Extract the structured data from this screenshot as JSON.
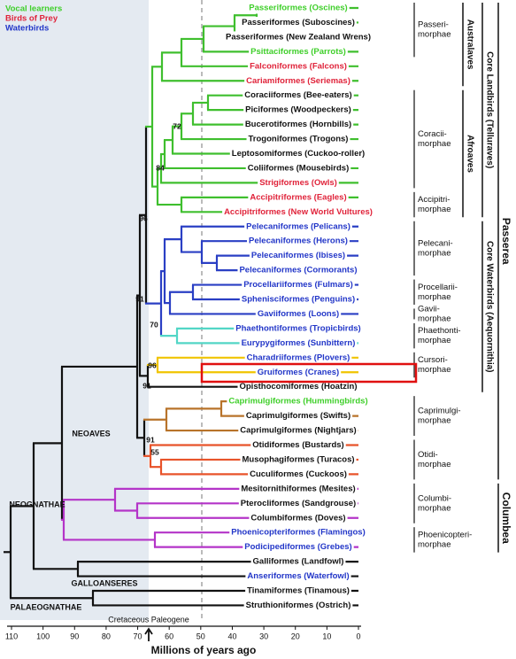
{
  "legend": [
    {
      "label": "Vocal learners",
      "color": "#3fcf2a"
    },
    {
      "label": "Birds of Prey",
      "color": "#e0233a"
    },
    {
      "label": "Waterbirds",
      "color": "#2236c8"
    }
  ],
  "taxa": [
    {
      "label": "Passeriformes (Oscines)",
      "color": "#3fcf2a"
    },
    {
      "label": "Passeriformes (Suboscines)",
      "color": "#111111"
    },
    {
      "label": "Passeriformes (New Zealand Wrens)",
      "color": "#111111"
    },
    {
      "label": "Psittaciformes (Parrots)",
      "color": "#3fcf2a"
    },
    {
      "label": "Falconiformes (Falcons)",
      "color": "#e0233a"
    },
    {
      "label": "Cariamiformes (Seriemas)",
      "color": "#e0233a"
    },
    {
      "label": "Coraciiformes (Bee-eaters)",
      "color": "#111111"
    },
    {
      "label": "Piciformes (Woodpeckers)",
      "color": "#111111"
    },
    {
      "label": "Bucerotiformes (Hornbills)",
      "color": "#111111"
    },
    {
      "label": "Trogoniformes (Trogons)",
      "color": "#111111"
    },
    {
      "label": "Leptosomiformes (Cuckoo-roller)",
      "color": "#111111"
    },
    {
      "label": "Coliiformes (Mousebirds)",
      "color": "#111111"
    },
    {
      "label": "Strigiformes (Owls)",
      "color": "#e0233a"
    },
    {
      "label": "Accipitriformes (Eagles)",
      "color": "#e0233a"
    },
    {
      "label": "Accipitriformes (New World Vultures)",
      "color": "#e0233a"
    },
    {
      "label": "Pelecaniformes (Pelicans)",
      "color": "#2236c8"
    },
    {
      "label": "Pelecaniformes (Herons)",
      "color": "#2236c8"
    },
    {
      "label": "Pelecaniformes (Ibises)",
      "color": "#2236c8"
    },
    {
      "label": "Pelecaniformes (Cormorants)",
      "color": "#2236c8"
    },
    {
      "label": "Procellariiformes (Fulmars)",
      "color": "#2236c8"
    },
    {
      "label": "Sphenisciformes (Penguins)",
      "color": "#2236c8"
    },
    {
      "label": "Gaviiformes (Loons)",
      "color": "#2236c8"
    },
    {
      "label": "Phaethontiformes (Tropicbirds)",
      "color": "#2236c8"
    },
    {
      "label": "Eurypygiformes (Sunbittern)",
      "color": "#2236c8"
    },
    {
      "label": "Charadriiformes (Plovers)",
      "color": "#2236c8"
    },
    {
      "label": "Gruiformes (Cranes)",
      "color": "#2236c8"
    },
    {
      "label": "Opisthocomiformes (Hoatzin)",
      "color": "#111111"
    },
    {
      "label": "Caprimulgiformes (Hummingbirds)",
      "color": "#3fcf2a"
    },
    {
      "label": "Caprimulgiformes (Swifts)",
      "color": "#111111"
    },
    {
      "label": "Caprimulgiformes (Nightjars)",
      "color": "#111111"
    },
    {
      "label": "Otidiformes (Bustards)",
      "color": "#111111"
    },
    {
      "label": "Musophagiformes (Turacos)",
      "color": "#111111"
    },
    {
      "label": "Cuculiformes (Cuckoos)",
      "color": "#111111"
    },
    {
      "label": "Mesitornithiformes (Mesites)",
      "color": "#111111"
    },
    {
      "label": "Pterocliformes (Sandgrouse)",
      "color": "#111111"
    },
    {
      "label": "Columbiformes (Doves)",
      "color": "#111111"
    },
    {
      "label": "Phoenicopteriformes (Flamingos)",
      "color": "#2236c8"
    },
    {
      "label": "Podicipediformes (Grebes)",
      "color": "#2236c8"
    },
    {
      "label": "Galliformes (Landfowl)",
      "color": "#111111"
    },
    {
      "label": "Anseriformes (Waterfowl)",
      "color": "#2236c8"
    },
    {
      "label": "Tinamiformes (Tinamous)",
      "color": "#111111"
    },
    {
      "label": "Struthioniformes (Ostrich)",
      "color": "#111111"
    }
  ],
  "clades": [
    [
      "Passeri-",
      "morphae"
    ],
    [
      "Coracii-",
      "morphae"
    ],
    [
      "Accipitri-",
      "morphae"
    ],
    [
      "Pelecani-",
      "morphae"
    ],
    [
      "Procellarii-",
      "morphae"
    ],
    [
      "Gavii-",
      "morphae"
    ],
    [
      "Phaethonti-",
      "morphae"
    ],
    [
      "Cursori-",
      "morphae"
    ],
    [
      "Caprimulgi-",
      "morphae"
    ],
    [
      "Otidi-",
      "morphae"
    ],
    [
      "Columbi-",
      "morphae"
    ],
    [
      "Phoenicopteri-",
      "morphae"
    ]
  ],
  "supergroups": [
    "Australaves",
    "Afroaves",
    "Core Landbirds (Telluraves)",
    "Core Waterbirds (Aequornithia)",
    "Passerea",
    "Columbea"
  ],
  "node_support": [
    72,
    84,
    96,
    91,
    70,
    96,
    91,
    91,
    55
  ],
  "group_labels": [
    "NEOAVES",
    "NEOGNATHAE",
    "GALLOANSERES",
    "PALAEOGNATHAE"
  ],
  "axis": {
    "title": "Millions of years ago",
    "boundary_label": "Cretaceous Paleogene",
    "xlim": [
      110,
      0
    ],
    "ticks": [
      110,
      100,
      90,
      80,
      70,
      60,
      50,
      40,
      30,
      20,
      10,
      0
    ]
  }
}
